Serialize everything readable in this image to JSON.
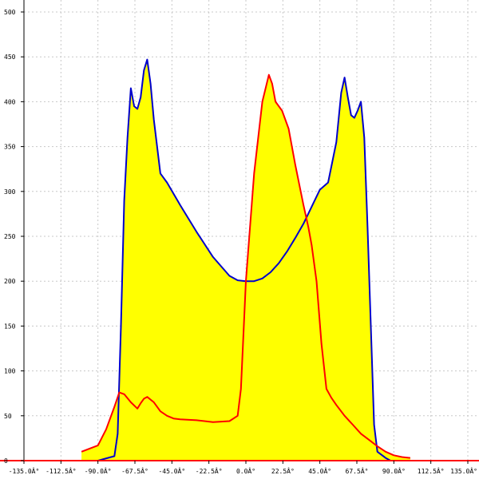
{
  "chart_data": {
    "type": "area",
    "title": "",
    "xlabel": "",
    "ylabel": "",
    "xlim": [
      -135,
      135
    ],
    "ylim": [
      0,
      500
    ],
    "grid": true,
    "x_ticks": [
      -135,
      -112.5,
      -90,
      -67.5,
      -45,
      -22.5,
      0,
      22.5,
      45,
      67.5,
      90,
      112.5,
      135
    ],
    "x_tick_labels": [
      "-135.0Â°",
      "-112.5Â°",
      "-90.0Â°",
      "-67.5Â°",
      "-45.0Â°",
      "-22.5Â°",
      "0.0Â°",
      "22.5Â°",
      "45.0Â°",
      "67.5Â°",
      "90.0Â°",
      "112.5Â°",
      "135.0Â°"
    ],
    "y_ticks": [
      0,
      50,
      100,
      150,
      200,
      250,
      300,
      350,
      400,
      450,
      500
    ],
    "y_tick_labels": [
      "0",
      "50",
      "100",
      "150",
      "200",
      "250",
      "300",
      "350",
      "400",
      "450",
      "500"
    ],
    "series": [
      {
        "color": "#0000cc",
        "points": [
          [
            -90,
            0
          ],
          [
            -80,
            5
          ],
          [
            -78,
            30
          ],
          [
            -76,
            150
          ],
          [
            -74,
            290
          ],
          [
            -72,
            360
          ],
          [
            -70,
            415
          ],
          [
            -68,
            395
          ],
          [
            -66,
            392
          ],
          [
            -64,
            405
          ],
          [
            -62,
            435
          ],
          [
            -60,
            447
          ],
          [
            -58,
            420
          ],
          [
            -56,
            380
          ],
          [
            -52,
            320
          ],
          [
            -48,
            310
          ],
          [
            -40,
            285
          ],
          [
            -30,
            255
          ],
          [
            -20,
            227
          ],
          [
            -10,
            206
          ],
          [
            -5,
            201
          ],
          [
            0,
            200
          ],
          [
            5,
            200
          ],
          [
            10,
            203
          ],
          [
            15,
            210
          ],
          [
            20,
            220
          ],
          [
            25,
            233
          ],
          [
            30,
            248
          ],
          [
            35,
            264
          ],
          [
            40,
            283
          ],
          [
            45,
            302
          ],
          [
            50,
            310
          ],
          [
            55,
            355
          ],
          [
            58,
            410
          ],
          [
            60,
            427
          ],
          [
            62,
            405
          ],
          [
            64,
            385
          ],
          [
            66,
            382
          ],
          [
            68,
            390
          ],
          [
            70,
            400
          ],
          [
            72,
            360
          ],
          [
            74,
            260
          ],
          [
            76,
            150
          ],
          [
            78,
            40
          ],
          [
            80,
            10
          ],
          [
            85,
            3
          ],
          [
            88,
            0
          ]
        ]
      },
      {
        "color": "#ff0000",
        "points": [
          [
            -100,
            10
          ],
          [
            -90,
            17
          ],
          [
            -85,
            35
          ],
          [
            -80,
            60
          ],
          [
            -77,
            76
          ],
          [
            -74,
            74
          ],
          [
            -70,
            65
          ],
          [
            -66,
            58
          ],
          [
            -64,
            64
          ],
          [
            -62,
            69
          ],
          [
            -60,
            71
          ],
          [
            -56,
            65
          ],
          [
            -52,
            55
          ],
          [
            -48,
            50
          ],
          [
            -44,
            47
          ],
          [
            -40,
            46
          ],
          [
            -30,
            45
          ],
          [
            -20,
            43
          ],
          [
            -10,
            44
          ],
          [
            -5,
            50
          ],
          [
            -3,
            80
          ],
          [
            0,
            200
          ],
          [
            5,
            320
          ],
          [
            10,
            400
          ],
          [
            14,
            430
          ],
          [
            16,
            420
          ],
          [
            18,
            400
          ],
          [
            22,
            390
          ],
          [
            26,
            370
          ],
          [
            30,
            330
          ],
          [
            35,
            285
          ],
          [
            38,
            260
          ],
          [
            40,
            240
          ],
          [
            43,
            200
          ],
          [
            46,
            130
          ],
          [
            49,
            80
          ],
          [
            52,
            70
          ],
          [
            55,
            62
          ],
          [
            60,
            50
          ],
          [
            65,
            40
          ],
          [
            70,
            30
          ],
          [
            75,
            23
          ],
          [
            80,
            16
          ],
          [
            85,
            10
          ],
          [
            90,
            6
          ],
          [
            95,
            4
          ],
          [
            100,
            3
          ]
        ]
      }
    ]
  }
}
